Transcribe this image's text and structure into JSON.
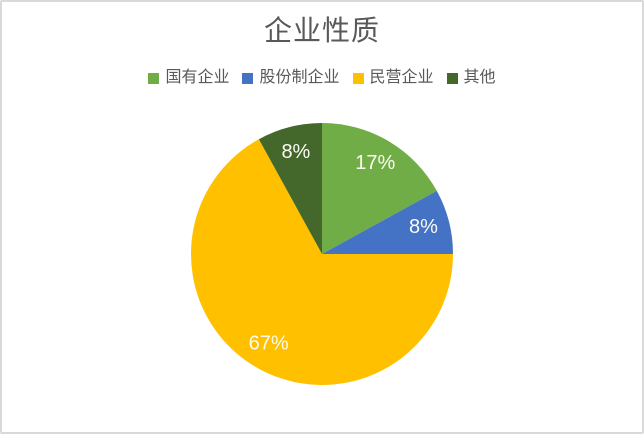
{
  "frame": {
    "background_color": "#FFFFFF",
    "border_color": "#D9D9D9"
  },
  "chart_data": {
    "type": "pie",
    "title": "企业性质",
    "title_color": "#595959",
    "categories": [
      "国有企业",
      "股份制企业",
      "民营企业",
      "其他"
    ],
    "values": [
      17,
      8,
      67,
      8
    ],
    "labels": [
      "17%",
      "8%",
      "67%",
      "8%"
    ],
    "colors": [
      "#70AD47",
      "#4472C4",
      "#FFC000",
      "#44682B"
    ],
    "label_color": "#FBFBF3",
    "legend_text_color": "#595959",
    "legend_position": "top",
    "start_angle_deg": 0,
    "direction": "clockwise",
    "grid": false
  }
}
